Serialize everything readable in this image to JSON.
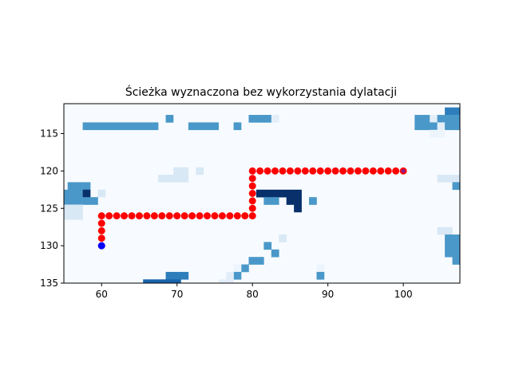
{
  "chart_data": {
    "type": "heatmap",
    "title": "Ścieżka wyznaczona bez wykorzystania dylatacji",
    "xlabel": "",
    "ylabel": "",
    "xlim": [
      55,
      107.5
    ],
    "ylim": [
      135,
      111
    ],
    "y_inverted": true,
    "grid": false,
    "legend": "none",
    "xticks": [
      60,
      70,
      80,
      90,
      100
    ],
    "yticks": [
      115,
      120,
      125,
      130,
      135
    ],
    "colormap": "Blues",
    "colors": {
      "path": "#ff0000",
      "start": "#0000ff",
      "goal": "#8b1a8b",
      "background": "#f7fbff"
    },
    "cells": [
      {
        "x": 106,
        "y": 112,
        "v": 0.7
      },
      {
        "x": 107,
        "y": 112,
        "v": 0.7
      },
      {
        "x": 69,
        "y": 113,
        "v": 0.6
      },
      {
        "x": 80,
        "y": 113,
        "v": 0.6
      },
      {
        "x": 81,
        "y": 113,
        "v": 0.6
      },
      {
        "x": 82,
        "y": 113,
        "v": 0.6
      },
      {
        "x": 83,
        "y": 113,
        "v": 0.1
      },
      {
        "x": 102,
        "y": 113,
        "v": 0.6
      },
      {
        "x": 103,
        "y": 113,
        "v": 0.6
      },
      {
        "x": 104,
        "y": 113,
        "v": 0.1
      },
      {
        "x": 105,
        "y": 113,
        "v": 0.6
      },
      {
        "x": 106,
        "y": 113,
        "v": 0.6
      },
      {
        "x": 107,
        "y": 113,
        "v": 0.6
      },
      {
        "x": 58,
        "y": 114,
        "v": 0.6
      },
      {
        "x": 59,
        "y": 114,
        "v": 0.6
      },
      {
        "x": 60,
        "y": 114,
        "v": 0.6
      },
      {
        "x": 61,
        "y": 114,
        "v": 0.6
      },
      {
        "x": 62,
        "y": 114,
        "v": 0.6
      },
      {
        "x": 63,
        "y": 114,
        "v": 0.6
      },
      {
        "x": 64,
        "y": 114,
        "v": 0.6
      },
      {
        "x": 65,
        "y": 114,
        "v": 0.6
      },
      {
        "x": 66,
        "y": 114,
        "v": 0.6
      },
      {
        "x": 67,
        "y": 114,
        "v": 0.6
      },
      {
        "x": 72,
        "y": 114,
        "v": 0.6
      },
      {
        "x": 73,
        "y": 114,
        "v": 0.6
      },
      {
        "x": 74,
        "y": 114,
        "v": 0.6
      },
      {
        "x": 75,
        "y": 114,
        "v": 0.6
      },
      {
        "x": 78,
        "y": 114,
        "v": 0.6
      },
      {
        "x": 102,
        "y": 114,
        "v": 0.6
      },
      {
        "x": 103,
        "y": 114,
        "v": 0.6
      },
      {
        "x": 104,
        "y": 114,
        "v": 0.6
      },
      {
        "x": 105,
        "y": 114,
        "v": 0.1
      },
      {
        "x": 106,
        "y": 114,
        "v": 0.6
      },
      {
        "x": 107,
        "y": 114,
        "v": 0.6
      },
      {
        "x": 104,
        "y": 115,
        "v": 0.05
      },
      {
        "x": 105,
        "y": 115,
        "v": 0.05
      },
      {
        "x": 70,
        "y": 120,
        "v": 0.15
      },
      {
        "x": 71,
        "y": 120,
        "v": 0.15
      },
      {
        "x": 73,
        "y": 120,
        "v": 0.15
      },
      {
        "x": 68,
        "y": 121,
        "v": 0.15
      },
      {
        "x": 69,
        "y": 121,
        "v": 0.15
      },
      {
        "x": 70,
        "y": 121,
        "v": 0.15
      },
      {
        "x": 71,
        "y": 121,
        "v": 0.15
      },
      {
        "x": 105,
        "y": 121,
        "v": 0.15
      },
      {
        "x": 106,
        "y": 121,
        "v": 0.15
      },
      {
        "x": 107,
        "y": 121,
        "v": 0.15
      },
      {
        "x": 56,
        "y": 122,
        "v": 0.6
      },
      {
        "x": 57,
        "y": 122,
        "v": 0.6
      },
      {
        "x": 58,
        "y": 122,
        "v": 0.6
      },
      {
        "x": 107,
        "y": 122,
        "v": 0.6
      },
      {
        "x": 55,
        "y": 123,
        "v": 0.6
      },
      {
        "x": 56,
        "y": 123,
        "v": 0.6
      },
      {
        "x": 57,
        "y": 123,
        "v": 0.6
      },
      {
        "x": 58,
        "y": 123,
        "v": 1.0
      },
      {
        "x": 60,
        "y": 123,
        "v": 0.15
      },
      {
        "x": 81,
        "y": 123,
        "v": 1.0
      },
      {
        "x": 82,
        "y": 123,
        "v": 1.0
      },
      {
        "x": 83,
        "y": 123,
        "v": 1.0
      },
      {
        "x": 84,
        "y": 123,
        "v": 1.0
      },
      {
        "x": 85,
        "y": 123,
        "v": 1.0
      },
      {
        "x": 86,
        "y": 123,
        "v": 1.0
      },
      {
        "x": 55,
        "y": 124,
        "v": 0.6
      },
      {
        "x": 56,
        "y": 124,
        "v": 0.6
      },
      {
        "x": 57,
        "y": 124,
        "v": 0.6
      },
      {
        "x": 58,
        "y": 124,
        "v": 0.6
      },
      {
        "x": 59,
        "y": 124,
        "v": 0.6
      },
      {
        "x": 82,
        "y": 124,
        "v": 0.6
      },
      {
        "x": 83,
        "y": 124,
        "v": 0.6
      },
      {
        "x": 85,
        "y": 124,
        "v": 1.0
      },
      {
        "x": 86,
        "y": 124,
        "v": 1.0
      },
      {
        "x": 88,
        "y": 124,
        "v": 0.6
      },
      {
        "x": 55,
        "y": 125,
        "v": 0.15
      },
      {
        "x": 56,
        "y": 125,
        "v": 0.15
      },
      {
        "x": 57,
        "y": 125,
        "v": 0.15
      },
      {
        "x": 86,
        "y": 125,
        "v": 1.0
      },
      {
        "x": 55,
        "y": 126,
        "v": 0.15
      },
      {
        "x": 56,
        "y": 126,
        "v": 0.15
      },
      {
        "x": 57,
        "y": 126,
        "v": 0.15
      },
      {
        "x": 105,
        "y": 128,
        "v": 0.15
      },
      {
        "x": 106,
        "y": 128,
        "v": 0.15
      },
      {
        "x": 84,
        "y": 129,
        "v": 0.15
      },
      {
        "x": 106,
        "y": 129,
        "v": 0.6
      },
      {
        "x": 107,
        "y": 129,
        "v": 0.6
      },
      {
        "x": 82,
        "y": 130,
        "v": 0.6
      },
      {
        "x": 106,
        "y": 130,
        "v": 0.6
      },
      {
        "x": 107,
        "y": 130,
        "v": 0.6
      },
      {
        "x": 83,
        "y": 131,
        "v": 0.6
      },
      {
        "x": 106,
        "y": 131,
        "v": 0.6
      },
      {
        "x": 107,
        "y": 131,
        "v": 0.6
      },
      {
        "x": 80,
        "y": 132,
        "v": 0.6
      },
      {
        "x": 81,
        "y": 132,
        "v": 0.6
      },
      {
        "x": 107,
        "y": 132,
        "v": 0.6
      },
      {
        "x": 79,
        "y": 133,
        "v": 0.6
      },
      {
        "x": 78,
        "y": 133,
        "v": 0.05
      },
      {
        "x": 89,
        "y": 133,
        "v": 0.05
      },
      {
        "x": 69,
        "y": 134,
        "v": 0.7
      },
      {
        "x": 70,
        "y": 134,
        "v": 0.7
      },
      {
        "x": 71,
        "y": 134,
        "v": 0.7
      },
      {
        "x": 78,
        "y": 134,
        "v": 0.6
      },
      {
        "x": 89,
        "y": 134,
        "v": 0.6
      },
      {
        "x": 77,
        "y": 134,
        "v": 0.1
      },
      {
        "x": 66,
        "y": 135,
        "v": 0.8
      },
      {
        "x": 67,
        "y": 135,
        "v": 0.8
      },
      {
        "x": 68,
        "y": 135,
        "v": 0.8
      },
      {
        "x": 69,
        "y": 135,
        "v": 0.8
      },
      {
        "x": 70,
        "y": 135,
        "v": 0.8
      },
      {
        "x": 76,
        "y": 135,
        "v": 0.1
      },
      {
        "x": 77,
        "y": 135,
        "v": 0.1
      }
    ],
    "path": [
      {
        "x": 60,
        "y": 130
      },
      {
        "x": 60,
        "y": 129
      },
      {
        "x": 60,
        "y": 128
      },
      {
        "x": 60,
        "y": 127
      },
      {
        "x": 60,
        "y": 126
      },
      {
        "x": 61,
        "y": 126
      },
      {
        "x": 62,
        "y": 126
      },
      {
        "x": 63,
        "y": 126
      },
      {
        "x": 64,
        "y": 126
      },
      {
        "x": 65,
        "y": 126
      },
      {
        "x": 66,
        "y": 126
      },
      {
        "x": 67,
        "y": 126
      },
      {
        "x": 68,
        "y": 126
      },
      {
        "x": 69,
        "y": 126
      },
      {
        "x": 70,
        "y": 126
      },
      {
        "x": 71,
        "y": 126
      },
      {
        "x": 72,
        "y": 126
      },
      {
        "x": 73,
        "y": 126
      },
      {
        "x": 74,
        "y": 126
      },
      {
        "x": 75,
        "y": 126
      },
      {
        "x": 76,
        "y": 126
      },
      {
        "x": 77,
        "y": 126
      },
      {
        "x": 78,
        "y": 126
      },
      {
        "x": 79,
        "y": 126
      },
      {
        "x": 80,
        "y": 126
      },
      {
        "x": 80,
        "y": 125
      },
      {
        "x": 80,
        "y": 124
      },
      {
        "x": 80,
        "y": 123
      },
      {
        "x": 80,
        "y": 122
      },
      {
        "x": 80,
        "y": 121
      },
      {
        "x": 80,
        "y": 120
      },
      {
        "x": 81,
        "y": 120
      },
      {
        "x": 82,
        "y": 120
      },
      {
        "x": 83,
        "y": 120
      },
      {
        "x": 84,
        "y": 120
      },
      {
        "x": 85,
        "y": 120
      },
      {
        "x": 86,
        "y": 120
      },
      {
        "x": 87,
        "y": 120
      },
      {
        "x": 88,
        "y": 120
      },
      {
        "x": 89,
        "y": 120
      },
      {
        "x": 90,
        "y": 120
      },
      {
        "x": 91,
        "y": 120
      },
      {
        "x": 92,
        "y": 120
      },
      {
        "x": 93,
        "y": 120
      },
      {
        "x": 94,
        "y": 120
      },
      {
        "x": 95,
        "y": 120
      },
      {
        "x": 96,
        "y": 120
      },
      {
        "x": 97,
        "y": 120
      },
      {
        "x": 98,
        "y": 120
      },
      {
        "x": 99,
        "y": 120
      },
      {
        "x": 100,
        "y": 120
      }
    ],
    "start": {
      "x": 60,
      "y": 130
    },
    "goal": {
      "x": 100,
      "y": 120
    }
  }
}
